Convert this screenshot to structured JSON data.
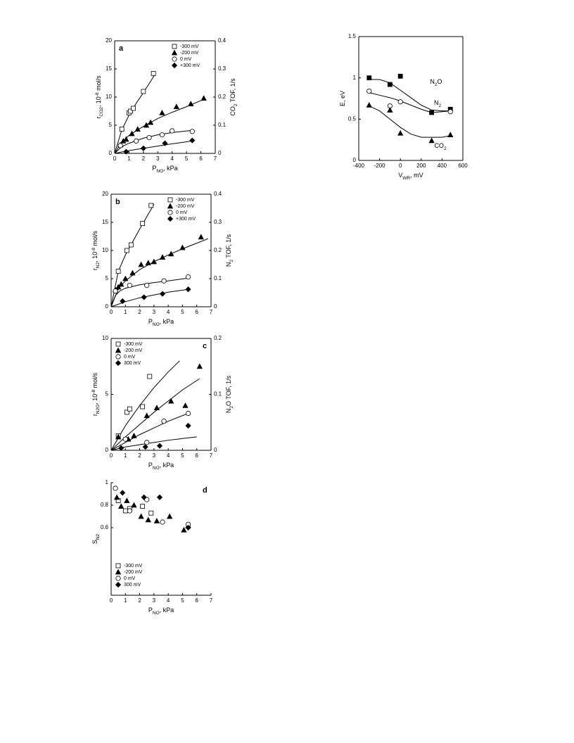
{
  "chart_data": [
    {
      "type": "scatter",
      "panel": "a",
      "xlabel": [
        {
          "text": "P"
        },
        {
          "text": "NO",
          "sub": true
        },
        {
          "text": ", kPa"
        }
      ],
      "ylabel": [
        {
          "text": "r"
        },
        {
          "text": "CO2",
          "sub": true
        },
        {
          "text": ", 10"
        },
        {
          "text": "-8",
          "sup": true
        },
        {
          "text": " mol/s"
        }
      ],
      "y2label": [
        {
          "text": "CO"
        },
        {
          "text": "2",
          "sub": true
        },
        {
          "text": " TOF, 1/s"
        }
      ],
      "xlim": [
        0,
        7
      ],
      "xticks": [
        0,
        1,
        2,
        3,
        4,
        5,
        6,
        7
      ],
      "ylim": [
        0,
        20
      ],
      "yticks": [
        0,
        5,
        10,
        15,
        20
      ],
      "y2lim": [
        0,
        0.4
      ],
      "y2ticks": [
        0,
        0.1,
        0.2,
        0.3,
        0.4
      ],
      "legend": "upper right",
      "series": [
        {
          "name": "-300 mV",
          "marker": "square-open",
          "color": "#000000",
          "x": [
            0.5,
            1.0,
            1.1,
            1.3,
            2.0,
            2.7
          ],
          "values": [
            4.3,
            7.2,
            7.5,
            8,
            11,
            14.2
          ]
        },
        {
          "name": "-200 mV",
          "marker": "triangle",
          "color": "#000000",
          "x": [
            0.4,
            0.6,
            0.8,
            1.2,
            1.6,
            2.2,
            2.5,
            3.3,
            4.3,
            5.3,
            6.2
          ],
          "values": [
            1.5,
            2.2,
            2.5,
            3.5,
            4.3,
            5,
            5.5,
            7.2,
            8.3,
            8.8,
            9.8
          ]
        },
        {
          "name": "0 mV",
          "marker": "circle-open",
          "color": "#000000",
          "x": [
            0.4,
            1.5,
            2.4,
            3.3,
            4.0,
            5.4
          ],
          "values": [
            1.4,
            2.2,
            2.8,
            3.3,
            4,
            3.9
          ]
        },
        {
          "name": "+300 mV",
          "marker": "diamond",
          "color": "#000000",
          "x": [
            0.8,
            2.0,
            3.5,
            5.4
          ],
          "values": [
            0.3,
            0.9,
            1.8,
            2.3
          ]
        }
      ],
      "fits": [
        {
          "x": [
            0,
            0.5,
            1,
            1.5,
            2,
            2.5,
            2.8
          ],
          "values": [
            0,
            4.2,
            6.8,
            8.9,
            10.8,
            12.8,
            14
          ]
        },
        {
          "x": [
            0,
            0.5,
            1,
            2,
            3,
            4,
            5,
            6.2
          ],
          "values": [
            0,
            2,
            3.2,
            4.8,
            6.2,
            7.3,
            8.3,
            9.6
          ]
        },
        {
          "x": [
            0,
            0.5,
            1,
            2,
            3,
            4,
            5.4
          ],
          "values": [
            0,
            1.2,
            1.8,
            2.7,
            3.3,
            3.7,
            4.1
          ]
        },
        {
          "x": [
            0,
            1,
            2,
            3,
            4,
            5.4
          ],
          "values": [
            0,
            0.5,
            0.9,
            1.3,
            1.7,
            2.2
          ]
        }
      ]
    },
    {
      "type": "scatter",
      "panel": "b",
      "xlabel": [
        {
          "text": "P"
        },
        {
          "text": "NO",
          "sub": true
        },
        {
          "text": ", kPa"
        }
      ],
      "ylabel": [
        {
          "text": "r"
        },
        {
          "text": "N2",
          "sub": true
        },
        {
          "text": ", 10"
        },
        {
          "text": "-8",
          "sup": true
        },
        {
          "text": " mol/s"
        }
      ],
      "y2label": [
        {
          "text": "N"
        },
        {
          "text": "2",
          "sub": true
        },
        {
          "text": " TOF, 1/s"
        }
      ],
      "xlim": [
        0,
        7
      ],
      "xticks": [
        0,
        1,
        2,
        3,
        4,
        5,
        6,
        7
      ],
      "ylim": [
        0,
        20
      ],
      "yticks": [
        0,
        5,
        10,
        15,
        20
      ],
      "y2lim": [
        0,
        0.4
      ],
      "y2ticks": [
        0,
        0.1,
        0.2,
        0.3,
        0.4
      ],
      "legend": "upper right",
      "series": [
        {
          "name": "-300 mV",
          "marker": "square-open",
          "color": "#000000",
          "x": [
            0.5,
            1.1,
            1.4,
            2.2,
            2.8
          ],
          "values": [
            6.3,
            10,
            11,
            14.8,
            18
          ]
        },
        {
          "name": "-200 mV",
          "marker": "triangle",
          "color": "#000000",
          "x": [
            0.3,
            0.5,
            0.7,
            1.0,
            1.5,
            2.1,
            2.6,
            3.0,
            3.6,
            4.2,
            5.0,
            6.3
          ],
          "values": [
            3,
            3.5,
            4,
            5,
            6,
            7.5,
            7.8,
            8,
            8.8,
            9.4,
            10.5,
            12.4
          ]
        },
        {
          "name": "0 mV",
          "marker": "circle-open",
          "color": "#000000",
          "x": [
            0.3,
            1.3,
            2.5,
            3.7,
            5.4
          ],
          "values": [
            2.8,
            3.8,
            3.8,
            4.6,
            5.3
          ]
        },
        {
          "name": "+300 mV",
          "marker": "diamond",
          "color": "#000000",
          "x": [
            0.8,
            2.3,
            3.6,
            5.4
          ],
          "values": [
            1,
            1.7,
            2.3,
            3.1
          ]
        }
      ],
      "fits": [
        {
          "x": [
            0,
            0.5,
            1,
            1.5,
            2,
            2.5,
            3
          ],
          "values": [
            0,
            6.3,
            9.2,
            11.5,
            13.8,
            16,
            18.2
          ]
        },
        {
          "x": [
            0,
            0.5,
            1,
            2,
            3,
            4,
            5,
            6,
            6.8
          ],
          "values": [
            0,
            3.2,
            4.6,
            6.6,
            8,
            9.2,
            10.3,
            11.3,
            12.1
          ]
        },
        {
          "x": [
            0,
            0.3,
            0.6,
            1,
            2,
            3,
            4,
            5.4
          ],
          "values": [
            0,
            2,
            2.8,
            3.3,
            3.9,
            4.3,
            4.6,
            5.1
          ]
        },
        {
          "x": [
            0,
            1,
            2,
            3,
            4,
            5.4
          ],
          "values": [
            0,
            0.9,
            1.6,
            2.1,
            2.6,
            3.1
          ]
        }
      ]
    },
    {
      "type": "scatter",
      "panel": "c",
      "xlabel": [
        {
          "text": "P"
        },
        {
          "text": "NO",
          "sub": true
        },
        {
          "text": ", kPa"
        }
      ],
      "ylabel": [
        {
          "text": "r"
        },
        {
          "text": "N2O",
          "sub": true
        },
        {
          "text": ", 10"
        },
        {
          "text": "-8",
          "sup": true
        },
        {
          "text": " mol/s"
        }
      ],
      "y2label": [
        {
          "text": "N"
        },
        {
          "text": "2",
          "sub": true
        },
        {
          "text": "O TOF, 1/s"
        }
      ],
      "xlim": [
        0,
        7
      ],
      "xticks": [
        0,
        1,
        2,
        3,
        4,
        5,
        6,
        7
      ],
      "ylim": [
        0,
        10
      ],
      "yticks": [
        0,
        5,
        10
      ],
      "y2lim": [
        0,
        0.2
      ],
      "y2ticks": [
        0,
        0.1,
        0.2
      ],
      "legend": "upper left",
      "series": [
        {
          "name": "-300 mV",
          "marker": "square-open",
          "color": "#000000",
          "x": [
            0.5,
            1.1,
            1.3,
            2.2,
            2.7
          ],
          "values": [
            1.3,
            3.4,
            3.7,
            3.9,
            6.6
          ]
        },
        {
          "name": "-200 mV",
          "marker": "triangle",
          "color": "#000000",
          "x": [
            0.5,
            1.2,
            1.6,
            2.5,
            3.2,
            4.2,
            5.2,
            6.2
          ],
          "values": [
            1.2,
            1,
            1.3,
            3.1,
            3.8,
            4.4,
            4,
            7.5
          ]
        },
        {
          "name": "0 mV",
          "marker": "circle-open",
          "color": "#000000",
          "x": [
            1.0,
            2.5,
            3.7,
            5.4
          ],
          "values": [
            1,
            0.7,
            2.6,
            3.3
          ]
        },
        {
          "name": "300 mV",
          "marker": "diamond",
          "color": "#000000",
          "x": [
            0.7,
            2.4,
            3.4,
            5.4
          ],
          "values": [
            0.2,
            0.3,
            0.4,
            2.2
          ]
        }
      ],
      "fits": [
        {
          "x": [
            0,
            1,
            2,
            3,
            4,
            4.8
          ],
          "values": [
            0,
            2.2,
            4,
            5.6,
            7,
            8
          ]
        },
        {
          "x": [
            0,
            1,
            2,
            3,
            4,
            5,
            6.2
          ],
          "values": [
            0,
            1.2,
            2.3,
            3.4,
            4.4,
            5.4,
            6.4
          ]
        },
        {
          "x": [
            0,
            1,
            2,
            3,
            4,
            5.4
          ],
          "values": [
            0,
            0.7,
            1.4,
            2,
            2.6,
            3.3
          ]
        },
        {
          "x": [
            0,
            1,
            2,
            3,
            4,
            5,
            6
          ],
          "values": [
            0,
            0.3,
            0.5,
            0.7,
            0.9,
            1.05,
            1.2
          ]
        }
      ]
    },
    {
      "type": "scatter",
      "panel": "d",
      "xlabel": [
        {
          "text": "P"
        },
        {
          "text": "NO",
          "sub": true
        },
        {
          "text": ", kPa"
        }
      ],
      "ylabel": [
        {
          "text": "S"
        },
        {
          "text": "N2",
          "sub": true
        }
      ],
      "xlim": [
        0,
        7
      ],
      "xticks": [
        0,
        1,
        2,
        3,
        4,
        5,
        6,
        7
      ],
      "ylim": [
        0,
        1
      ],
      "yticks": [
        0.6,
        0.8,
        1
      ],
      "legend": "lower left",
      "series": [
        {
          "name": "-300 mV",
          "marker": "square-open",
          "color": "#000000",
          "x": [
            0.5,
            1.0,
            1.3,
            2.2,
            2.8
          ],
          "values": [
            0.84,
            0.75,
            0.77,
            0.79,
            0.73
          ]
        },
        {
          "name": "-200 mV",
          "marker": "triangle",
          "color": "#000000",
          "x": [
            0.4,
            0.7,
            1.1,
            1.6,
            2.1,
            2.6,
            3.2,
            4.1,
            5.1,
            5.4
          ],
          "values": [
            0.87,
            0.79,
            0.84,
            0.8,
            0.7,
            0.67,
            0.66,
            0.7,
            0.58,
            0.62
          ]
        },
        {
          "name": "0 mV",
          "marker": "circle-open",
          "color": "#000000",
          "x": [
            0.3,
            1.3,
            2.5,
            3.6,
            5.4
          ],
          "values": [
            0.95,
            0.75,
            0.85,
            0.65,
            0.63
          ]
        },
        {
          "name": "300 mV",
          "marker": "diamond",
          "color": "#000000",
          "x": [
            0.8,
            2.3,
            3.4,
            5.4
          ],
          "values": [
            0.91,
            0.87,
            0.87,
            0.6
          ]
        }
      ]
    },
    {
      "type": "scatter",
      "xlabel": [
        {
          "text": "V"
        },
        {
          "text": "WR",
          "sub": true
        },
        {
          "text": ", mV"
        }
      ],
      "ylabel": [
        {
          "text": "E, eV"
        }
      ],
      "xlim": [
        -400,
        600
      ],
      "xticks": [
        -400,
        -200,
        0,
        200,
        400,
        600
      ],
      "ylim": [
        0,
        1.5
      ],
      "yticks": [
        0,
        0.5,
        1,
        1.5
      ],
      "series": [
        {
          "label": [
            {
              "text": "N"
            },
            {
              "text": "2",
              "sub": true
            },
            {
              "text": "O"
            }
          ],
          "marker": "square",
          "color": "#000000",
          "x": [
            -300,
            -100,
            0,
            300,
            480
          ],
          "values": [
            1.0,
            0.92,
            1.02,
            0.58,
            0.62
          ]
        },
        {
          "label": [
            {
              "text": "N"
            },
            {
              "text": "2",
              "sub": true
            }
          ],
          "marker": "circle-open",
          "color": "#000000",
          "x": [
            -300,
            -100,
            0,
            480
          ],
          "values": [
            0.84,
            0.66,
            0.71,
            0.59
          ]
        },
        {
          "label": [
            {
              "text": "CO"
            },
            {
              "text": "2",
              "sub": true
            }
          ],
          "marker": "triangle",
          "color": "#000000",
          "x": [
            -300,
            -100,
            0,
            300,
            480
          ],
          "values": [
            0.67,
            0.61,
            0.33,
            0.24,
            0.31
          ]
        }
      ],
      "fits": [
        {
          "x": [
            -300,
            -200,
            -100,
            0,
            100,
            200,
            300,
            400,
            480
          ],
          "values": [
            0.98,
            0.98,
            0.94,
            0.85,
            0.76,
            0.67,
            0.61,
            0.6,
            0.6
          ]
        },
        {
          "x": [
            -300,
            -200,
            -100,
            0,
            100,
            200,
            300,
            400,
            480
          ],
          "values": [
            0.82,
            0.79,
            0.76,
            0.72,
            0.67,
            0.62,
            0.58,
            0.59,
            0.6
          ]
        },
        {
          "x": [
            -300,
            -200,
            -100,
            0,
            100,
            200,
            300,
            400,
            480
          ],
          "values": [
            0.66,
            0.6,
            0.5,
            0.4,
            0.32,
            0.28,
            0.28,
            0.28,
            0.3
          ]
        }
      ]
    }
  ]
}
